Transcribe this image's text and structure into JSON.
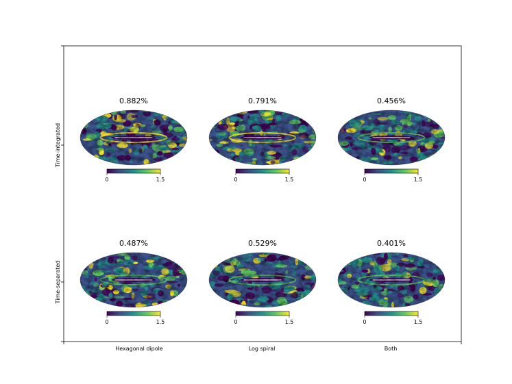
{
  "figure": {
    "row_labels": [
      "Time-integrated",
      "Time-separated"
    ],
    "col_labels": [
      "Hexagonal dipole",
      "Log spiral",
      "Both"
    ]
  },
  "colors": {
    "viridis": [
      "#440154",
      "#3b528b",
      "#21918c",
      "#5ec962",
      "#fde725"
    ],
    "frame": "#000000",
    "background": "#ffffff"
  },
  "colorbar": {
    "min_label": "0",
    "max_label": "1.5",
    "vmin": 0,
    "vmax": 1.5
  },
  "chart_data": [
    {
      "type": "heatmap",
      "projection": "mollweide",
      "row": "Time-integrated",
      "column": "Hexagonal dipole",
      "title": "0.882%",
      "value_percent": 0.882,
      "colorbar_range": [
        0,
        1.5
      ]
    },
    {
      "type": "heatmap",
      "projection": "mollweide",
      "row": "Time-integrated",
      "column": "Log spiral",
      "title": "0.791%",
      "value_percent": 0.791,
      "colorbar_range": [
        0,
        1.5
      ]
    },
    {
      "type": "heatmap",
      "projection": "mollweide",
      "row": "Time-integrated",
      "column": "Both",
      "title": "0.456%",
      "value_percent": 0.456,
      "colorbar_range": [
        0,
        1.5
      ]
    },
    {
      "type": "heatmap",
      "projection": "mollweide",
      "row": "Time-separated",
      "column": "Hexagonal dipole",
      "title": "0.487%",
      "value_percent": 0.487,
      "colorbar_range": [
        0,
        1.5
      ]
    },
    {
      "type": "heatmap",
      "projection": "mollweide",
      "row": "Time-separated",
      "column": "Log spiral",
      "title": "0.529%",
      "value_percent": 0.529,
      "colorbar_range": [
        0,
        1.5
      ]
    },
    {
      "type": "heatmap",
      "projection": "mollweide",
      "row": "Time-separated",
      "column": "Both",
      "title": "0.401%",
      "value_percent": 0.401,
      "colorbar_range": [
        0,
        1.5
      ]
    }
  ]
}
